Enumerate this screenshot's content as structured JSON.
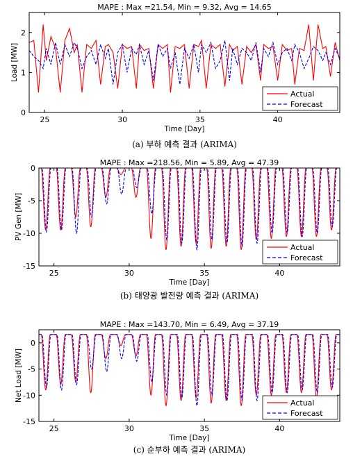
{
  "colors": {
    "actual": "#ff0000",
    "forecast": "#0000ff",
    "axis": "#000000"
  },
  "chart_data": [
    {
      "type": "line",
      "title": "MAPE : Max =21.54, Min = 9.32, Avg = 14.65",
      "xlabel": "Time [Day]",
      "ylabel": "Load [MW]",
      "caption": "(a) 부하 예측 결과 (ARIMA)",
      "xlim": [
        24,
        44
      ],
      "ylim": [
        0,
        2.5
      ],
      "xticks": [
        25,
        30,
        35,
        40
      ],
      "yticks": [
        0,
        1,
        2
      ],
      "legend": {
        "position": "bottom-right",
        "entries": [
          "Actual",
          "Forecast"
        ]
      },
      "series": [
        {
          "name": "Actual",
          "style": "solid",
          "x": [
            24.0,
            24.3,
            24.6,
            24.9,
            25.1,
            25.4,
            25.7,
            26.0,
            26.3,
            26.6,
            26.9,
            27.1,
            27.4,
            27.7,
            28.0,
            28.3,
            28.6,
            28.9,
            29.1,
            29.4,
            29.7,
            30.0,
            30.3,
            30.6,
            30.9,
            31.1,
            31.4,
            31.7,
            32.0,
            32.3,
            32.6,
            32.9,
            33.1,
            33.4,
            33.7,
            34.0,
            34.3,
            34.6,
            34.9,
            35.1,
            35.4,
            35.7,
            36.0,
            36.3,
            36.6,
            36.9,
            37.1,
            37.4,
            37.7,
            38.0,
            38.3,
            38.6,
            38.9,
            39.1,
            39.4,
            39.7,
            40.0,
            40.3,
            40.6,
            40.9,
            41.1,
            41.4,
            41.7,
            42.0,
            42.3,
            42.6,
            42.9,
            43.1,
            43.4,
            43.7,
            44.0
          ],
          "values": [
            1.75,
            1.8,
            0.5,
            2.2,
            1.3,
            1.9,
            1.6,
            0.5,
            1.8,
            2.1,
            1.5,
            1.7,
            0.5,
            1.7,
            1.6,
            1.8,
            0.7,
            1.65,
            1.7,
            1.5,
            0.6,
            1.7,
            1.6,
            1.65,
            0.6,
            1.7,
            1.55,
            1.6,
            0.6,
            1.7,
            1.6,
            1.7,
            0.5,
            1.65,
            1.6,
            1.7,
            0.6,
            1.7,
            1.65,
            1.8,
            0.6,
            1.7,
            1.6,
            1.7,
            0.65,
            1.7,
            1.55,
            1.65,
            0.7,
            1.65,
            1.5,
            1.7,
            0.8,
            1.7,
            1.6,
            1.65,
            0.8,
            1.7,
            1.55,
            1.6,
            0.7,
            1.6,
            1.55,
            2.2,
            0.8,
            2.2,
            1.6,
            1.65,
            0.9,
            1.75,
            1.3
          ]
        },
        {
          "name": "Forecast",
          "style": "dashed",
          "x": [
            24.0,
            24.3,
            24.6,
            24.9,
            25.1,
            25.4,
            25.7,
            26.0,
            26.3,
            26.6,
            26.9,
            27.1,
            27.4,
            27.7,
            28.0,
            28.3,
            28.6,
            28.9,
            29.1,
            29.4,
            29.7,
            30.0,
            30.3,
            30.6,
            30.9,
            31.1,
            31.4,
            31.7,
            32.0,
            32.3,
            32.6,
            32.9,
            33.1,
            33.4,
            33.7,
            34.0,
            34.3,
            34.6,
            34.9,
            35.1,
            35.4,
            35.7,
            36.0,
            36.3,
            36.6,
            36.9,
            37.1,
            37.4,
            37.7,
            38.0,
            38.3,
            38.6,
            38.9,
            39.1,
            39.4,
            39.7,
            40.0,
            40.3,
            40.6,
            40.9,
            41.1,
            41.4,
            41.7,
            42.0,
            42.3,
            42.6,
            42.9,
            43.1,
            43.4,
            43.7,
            44.0
          ],
          "values": [
            1.55,
            1.4,
            1.3,
            1.1,
            1.6,
            1.2,
            1.75,
            1.2,
            1.7,
            1.4,
            1.75,
            1.6,
            1.1,
            1.4,
            1.55,
            1.2,
            1.7,
            1.35,
            1.6,
            0.7,
            1.5,
            1.7,
            1.0,
            1.6,
            1.45,
            1.7,
            1.2,
            1.55,
            0.8,
            1.7,
            1.4,
            1.6,
            1.1,
            1.5,
            0.7,
            1.6,
            1.35,
            1.7,
            1.0,
            1.7,
            1.5,
            1.75,
            1.1,
            1.3,
            1.8,
            0.8,
            1.6,
            1.2,
            1.6,
            1.5,
            1.3,
            1.75,
            1.0,
            1.6,
            1.4,
            1.75,
            1.2,
            1.5,
            1.6,
            1.3,
            1.7,
            1.5,
            1.1,
            1.35,
            1.65,
            1.55,
            1.3,
            1.5,
            1.2,
            1.6,
            1.35
          ]
        }
      ]
    },
    {
      "type": "line",
      "title": "MAPE : Max =218.56, Min = 5.89, Avg = 47.39",
      "xlabel": "Time [Day]",
      "ylabel": "PV Gen [MW]",
      "caption": "(b) 태양광 발전량 예측 결과 (ARIMA)",
      "xlim": [
        24,
        44
      ],
      "ylim": [
        -15,
        0
      ],
      "xticks": [
        25,
        30,
        35,
        40
      ],
      "yticks": [
        0,
        -5,
        -10,
        -15
      ],
      "legend": {
        "position": "bottom-right",
        "entries": [
          "Actual",
          "Forecast"
        ]
      },
      "series": [
        {
          "name": "Actual",
          "style": "solid",
          "dips": [
            {
              "x": 24.45,
              "y": -9.5
            },
            {
              "x": 25.45,
              "y": -9.5
            },
            {
              "x": 26.45,
              "y": -7.5
            },
            {
              "x": 27.45,
              "y": -9.0
            },
            {
              "x": 28.45,
              "y": -4.5
            },
            {
              "x": 29.45,
              "y": -1.0
            },
            {
              "x": 30.45,
              "y": -4.5
            },
            {
              "x": 31.45,
              "y": -10.8
            },
            {
              "x": 32.45,
              "y": -12.5
            },
            {
              "x": 33.45,
              "y": -12.0
            },
            {
              "x": 34.45,
              "y": -11.5
            },
            {
              "x": 35.45,
              "y": -12.3
            },
            {
              "x": 36.45,
              "y": -12.0
            },
            {
              "x": 37.45,
              "y": -12.5
            },
            {
              "x": 38.45,
              "y": -11.0
            },
            {
              "x": 39.45,
              "y": -10.8
            },
            {
              "x": 40.45,
              "y": -10.5
            },
            {
              "x": 41.45,
              "y": -10.5
            },
            {
              "x": 42.45,
              "y": -10.5
            },
            {
              "x": 43.45,
              "y": -9.5
            }
          ]
        },
        {
          "name": "Forecast",
          "style": "dashed",
          "dips": [
            {
              "x": 24.5,
              "y": -9.8
            },
            {
              "x": 25.5,
              "y": -9.5
            },
            {
              "x": 26.5,
              "y": -10.0
            },
            {
              "x": 27.5,
              "y": -7.5
            },
            {
              "x": 28.5,
              "y": -5.5
            },
            {
              "x": 29.5,
              "y": -4.0
            },
            {
              "x": 30.5,
              "y": -3.0
            },
            {
              "x": 31.5,
              "y": -7.0
            },
            {
              "x": 32.5,
              "y": -11.0
            },
            {
              "x": 33.5,
              "y": -11.5
            },
            {
              "x": 34.5,
              "y": -12.5
            },
            {
              "x": 35.5,
              "y": -11.0
            },
            {
              "x": 36.5,
              "y": -11.5
            },
            {
              "x": 37.5,
              "y": -12.0
            },
            {
              "x": 38.5,
              "y": -11.5
            },
            {
              "x": 39.5,
              "y": -10.0
            },
            {
              "x": 40.5,
              "y": -10.0
            },
            {
              "x": 41.5,
              "y": -10.5
            },
            {
              "x": 42.5,
              "y": -10.0
            },
            {
              "x": 43.5,
              "y": -9.0
            }
          ]
        }
      ]
    },
    {
      "type": "line",
      "title": "MAPE : Max =143.70, Min = 6.49, Avg = 37.19",
      "xlabel": "Time [Day]",
      "ylabel": "Net Load [MW]",
      "caption": "(c) 순부하 예측 결과 (ARIMA)",
      "xlim": [
        24,
        44
      ],
      "ylim": [
        -15,
        2.5
      ],
      "xticks": [
        25,
        30,
        35,
        40
      ],
      "yticks": [
        0,
        -5,
        -10,
        -15
      ],
      "legend": {
        "position": "bottom-right",
        "entries": [
          "Actual",
          "Forecast"
        ]
      },
      "series": [
        {
          "name": "Actual",
          "style": "solid",
          "dips": [
            {
              "x": 24.45,
              "y": -9.0
            },
            {
              "x": 25.45,
              "y": -8.0
            },
            {
              "x": 26.45,
              "y": -7.5
            },
            {
              "x": 27.45,
              "y": -9.5
            },
            {
              "x": 28.45,
              "y": -3.0
            },
            {
              "x": 29.45,
              "y": -0.5
            },
            {
              "x": 30.45,
              "y": -2.5
            },
            {
              "x": 31.45,
              "y": -10.0
            },
            {
              "x": 32.45,
              "y": -12.0
            },
            {
              "x": 33.45,
              "y": -11.0
            },
            {
              "x": 34.45,
              "y": -10.5
            },
            {
              "x": 35.45,
              "y": -11.5
            },
            {
              "x": 36.45,
              "y": -11.0
            },
            {
              "x": 37.45,
              "y": -12.0
            },
            {
              "x": 38.45,
              "y": -10.0
            },
            {
              "x": 39.45,
              "y": -10.0
            },
            {
              "x": 40.45,
              "y": -9.5
            },
            {
              "x": 41.45,
              "y": -9.5
            },
            {
              "x": 42.45,
              "y": -10.5
            },
            {
              "x": 43.45,
              "y": -9.0
            }
          ]
        },
        {
          "name": "Forecast",
          "style": "dashed",
          "dips": [
            {
              "x": 24.5,
              "y": -8.5
            },
            {
              "x": 25.5,
              "y": -9.0
            },
            {
              "x": 26.5,
              "y": -8.0
            },
            {
              "x": 27.5,
              "y": -5.0
            },
            {
              "x": 28.5,
              "y": -5.5
            },
            {
              "x": 29.5,
              "y": -3.0
            },
            {
              "x": 30.5,
              "y": -3.5
            },
            {
              "x": 31.5,
              "y": -7.5
            },
            {
              "x": 32.5,
              "y": -10.0
            },
            {
              "x": 33.5,
              "y": -10.5
            },
            {
              "x": 34.5,
              "y": -12.0
            },
            {
              "x": 35.5,
              "y": -10.0
            },
            {
              "x": 36.5,
              "y": -11.0
            },
            {
              "x": 37.5,
              "y": -11.0
            },
            {
              "x": 38.5,
              "y": -11.0
            },
            {
              "x": 39.5,
              "y": -9.5
            },
            {
              "x": 40.5,
              "y": -9.5
            },
            {
              "x": 41.5,
              "y": -9.0
            },
            {
              "x": 42.5,
              "y": -9.5
            },
            {
              "x": 43.5,
              "y": -8.5
            }
          ]
        }
      ]
    }
  ]
}
